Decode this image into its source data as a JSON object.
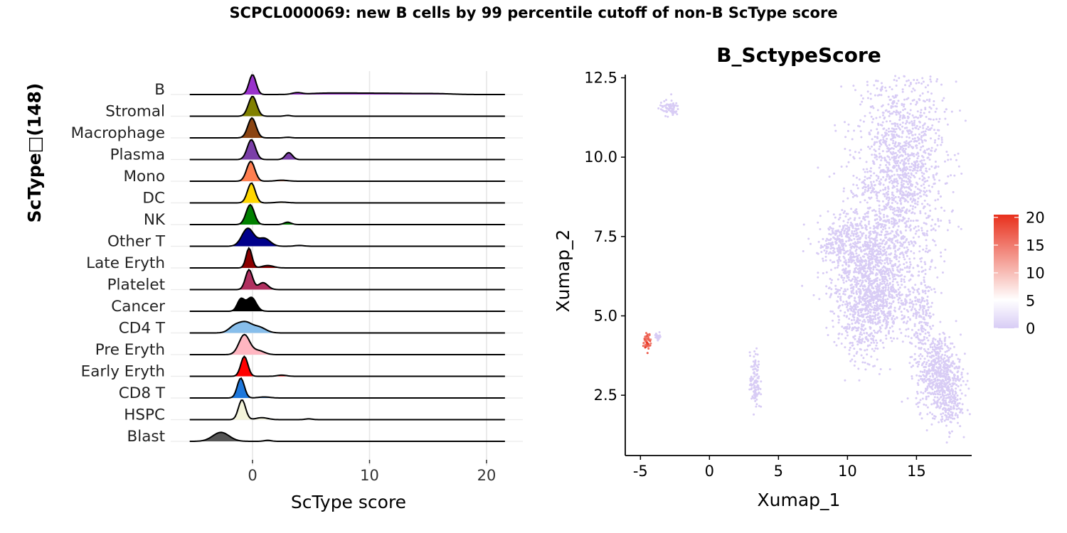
{
  "title": "SCPCL000069: new B cells by 99 percentile cutoff of non-B ScType score",
  "chart_data": [
    {
      "type": "ridgeline",
      "xlabel": "ScType score",
      "ylabel": "ScType□(148)",
      "xlim": [
        -5.5,
        23
      ],
      "xticks": [
        0,
        10,
        20
      ],
      "grid": "vertical major gridlines",
      "categories": [
        "B",
        "Stromal",
        "Macrophage",
        "Plasma",
        "Mono",
        "DC",
        "NK",
        "Other T",
        "Late Eryth",
        "Platelet",
        "Cancer",
        "CD4 T",
        "Pre Eryth",
        "Early Eryth",
        "CD8 T",
        "HSPC",
        "Blast"
      ],
      "series": [
        {
          "label": "B",
          "color": "#9932CC",
          "bumps": [
            [
              0,
              0.3,
              1.0
            ],
            [
              3.8,
              0.4,
              0.08
            ],
            [
              6,
              1.5,
              0.05
            ],
            [
              9,
              2.0,
              0.06
            ],
            [
              13,
              2.0,
              0.05
            ],
            [
              16,
              1.2,
              0.03
            ]
          ]
        },
        {
          "label": "Stromal",
          "color": "#808000",
          "bumps": [
            [
              0,
              0.35,
              1.0
            ],
            [
              3.0,
              0.25,
              0.04
            ]
          ]
        },
        {
          "label": "Macrophage",
          "color": "#8B4513",
          "bumps": [
            [
              -0.05,
              0.35,
              1.0
            ],
            [
              3.0,
              0.3,
              0.03
            ]
          ]
        },
        {
          "label": "Plasma",
          "color": "#7B3FA8",
          "bumps": [
            [
              -0.1,
              0.35,
              1.0
            ],
            [
              3.1,
              0.3,
              0.35
            ]
          ]
        },
        {
          "label": "Mono",
          "color": "#FF7F50",
          "bumps": [
            [
              -0.15,
              0.35,
              1.0
            ],
            [
              2.5,
              0.5,
              0.05
            ]
          ]
        },
        {
          "label": "DC",
          "color": "#FFD700",
          "bumps": [
            [
              -0.1,
              0.33,
              1.0
            ],
            [
              2.5,
              0.5,
              0.04
            ]
          ]
        },
        {
          "label": "NK",
          "color": "#008000",
          "bumps": [
            [
              -0.2,
              0.35,
              1.0
            ],
            [
              3.0,
              0.3,
              0.12
            ]
          ]
        },
        {
          "label": "Other T",
          "color": "#00008B",
          "bumps": [
            [
              -0.4,
              0.5,
              0.9
            ],
            [
              1.0,
              0.5,
              0.4
            ],
            [
              4,
              0.4,
              0.04
            ]
          ]
        },
        {
          "label": "Late Eryth",
          "color": "#8B0000",
          "bumps": [
            [
              -0.3,
              0.25,
              1.0
            ],
            [
              1.3,
              0.5,
              0.12
            ]
          ]
        },
        {
          "label": "Platelet",
          "color": "#B03060",
          "bumps": [
            [
              -0.3,
              0.3,
              1.0
            ],
            [
              0.9,
              0.4,
              0.35
            ]
          ]
        },
        {
          "label": "Cancer",
          "color": "#000000",
          "bumps": [
            [
              -1.0,
              0.3,
              0.6
            ],
            [
              -0.1,
              0.4,
              0.7
            ]
          ]
        },
        {
          "label": "CD4 T",
          "color": "#87BEEB",
          "bumps": [
            [
              -1.5,
              0.5,
              0.35
            ],
            [
              -0.6,
              0.5,
              0.45
            ],
            [
              0.5,
              0.6,
              0.3
            ]
          ]
        },
        {
          "label": "Pre Eryth",
          "color": "#FFB6C1",
          "bumps": [
            [
              -0.7,
              0.45,
              1.0
            ],
            [
              0.5,
              0.5,
              0.2
            ]
          ]
        },
        {
          "label": "Early Eryth",
          "color": "#FF0000",
          "bumps": [
            [
              -0.7,
              0.3,
              1.0
            ],
            [
              2.5,
              0.4,
              0.06
            ]
          ]
        },
        {
          "label": "CD8 T",
          "color": "#1E78DC",
          "bumps": [
            [
              -1.0,
              0.3,
              1.0
            ],
            [
              1.0,
              0.5,
              0.05
            ]
          ]
        },
        {
          "label": "HSPC",
          "color": "#F5F5DC",
          "bumps": [
            [
              -0.9,
              0.3,
              1.0
            ],
            [
              0.8,
              0.5,
              0.1
            ],
            [
              4.8,
              0.3,
              0.04
            ]
          ]
        },
        {
          "label": "Blast",
          "color": "#555555",
          "bumps": [
            [
              -2.7,
              0.7,
              0.45
            ],
            [
              1.3,
              0.3,
              0.05
            ]
          ]
        }
      ]
    },
    {
      "type": "scatter",
      "title": "B_SctypeScore",
      "xlabel": "Xumap_1",
      "ylabel": "Xumap_2",
      "xlim": [
        -6.1,
        19
      ],
      "ylim": [
        0.6,
        12.6
      ],
      "xticks": [
        -5,
        0,
        5,
        10,
        15
      ],
      "yticks": [
        2.5,
        5.0,
        7.5,
        10.0,
        12.5
      ],
      "xtick_labels": [
        "-5",
        "0",
        "5",
        "10",
        "15"
      ],
      "ytick_labels": [
        "2.5",
        "5.0",
        "7.5",
        "10.0",
        "12.5"
      ],
      "point_color_low": "#D8CCF5",
      "point_color_high": "#E8301C",
      "clusters": [
        {
          "cx": 13.9,
          "cy": 9.6,
          "sx": 1.6,
          "sy": 1.6,
          "n": 1400,
          "score": 0
        },
        {
          "cx": 11.4,
          "cy": 6.8,
          "sx": 1.5,
          "sy": 0.9,
          "n": 900,
          "score": 0
        },
        {
          "cx": 9.3,
          "cy": 7.3,
          "sx": 0.7,
          "sy": 0.35,
          "n": 120,
          "score": 0
        },
        {
          "cx": 11.0,
          "cy": 4.9,
          "sx": 0.9,
          "sy": 0.7,
          "n": 350,
          "score": 0
        },
        {
          "cx": 12.8,
          "cy": 5.6,
          "sx": 0.8,
          "sy": 0.6,
          "n": 300,
          "score": 0
        },
        {
          "cx": 15.3,
          "cy": 5.0,
          "sx": 0.5,
          "sy": 0.7,
          "n": 200,
          "score": 0
        },
        {
          "cx": 16.6,
          "cy": 3.2,
          "sx": 0.8,
          "sy": 0.6,
          "n": 550,
          "score": 0
        },
        {
          "cx": 17.3,
          "cy": 2.2,
          "sx": 0.5,
          "sy": 0.4,
          "n": 150,
          "score": 0
        },
        {
          "cx": -2.9,
          "cy": 11.55,
          "sx": 0.35,
          "sy": 0.12,
          "n": 70,
          "score": 0
        },
        {
          "cx": 3.3,
          "cy": 2.9,
          "sx": 0.18,
          "sy": 0.45,
          "n": 110,
          "score": 0
        },
        {
          "cx": -3.7,
          "cy": 4.35,
          "sx": 0.12,
          "sy": 0.06,
          "n": 25,
          "score": 0
        },
        {
          "cx": -4.5,
          "cy": 4.2,
          "sx": 0.15,
          "sy": 0.12,
          "n": 55,
          "score": 17
        }
      ]
    }
  ],
  "colorbar": {
    "ticks": [
      0,
      5,
      10,
      15,
      20
    ],
    "tick_labels": [
      "0",
      "5",
      "10",
      "15",
      "20"
    ],
    "max": 20.5,
    "colors": [
      "#D8CCF5",
      "#FFFFFF",
      "#E8301C"
    ]
  }
}
